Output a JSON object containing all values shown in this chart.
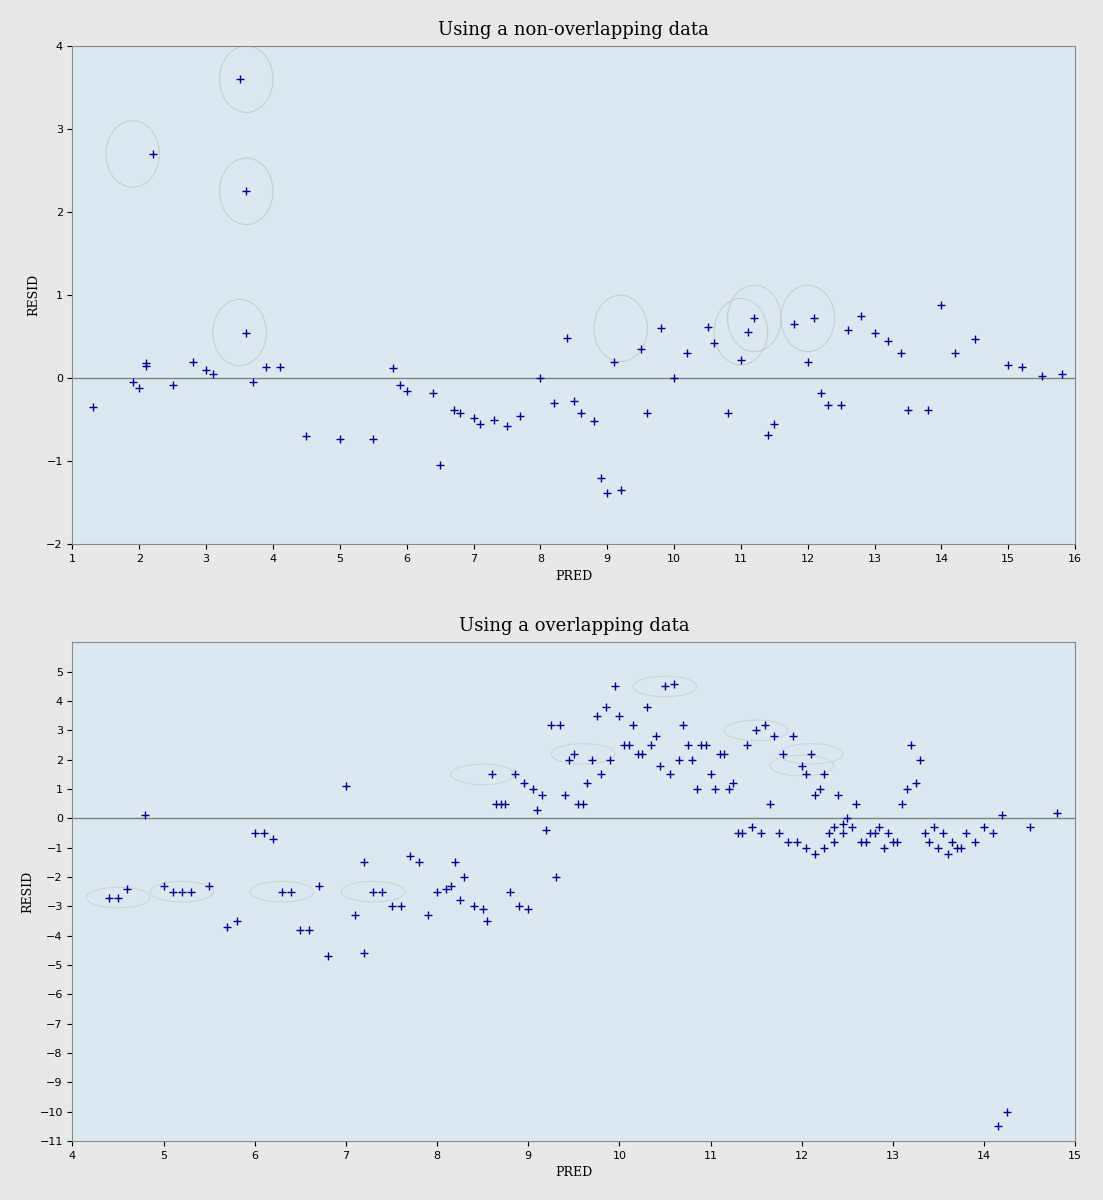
{
  "plot1": {
    "title": "Using a non-overlapping data",
    "xlabel": "PRED",
    "ylabel": "RESID",
    "xlim": [
      1,
      16
    ],
    "ylim": [
      -2,
      4
    ],
    "xticks": [
      1,
      2,
      3,
      4,
      5,
      6,
      7,
      8,
      9,
      10,
      11,
      12,
      13,
      14,
      15,
      16
    ],
    "yticks": [
      -2,
      -1,
      0,
      1,
      2,
      3,
      4
    ],
    "points_x": [
      1.3,
      1.9,
      2.0,
      2.1,
      2.1,
      2.2,
      2.5,
      2.8,
      3.0,
      3.1,
      3.5,
      3.6,
      3.6,
      3.7,
      3.9,
      4.1,
      4.5,
      5.0,
      5.5,
      5.8,
      5.9,
      6.0,
      6.4,
      6.5,
      6.7,
      6.8,
      7.0,
      7.1,
      7.3,
      7.5,
      7.7,
      8.0,
      8.2,
      8.4,
      8.5,
      8.6,
      8.8,
      8.9,
      9.0,
      9.1,
      9.2,
      9.5,
      9.6,
      9.8,
      10.0,
      10.2,
      10.5,
      10.6,
      10.8,
      11.0,
      11.1,
      11.2,
      11.4,
      11.5,
      11.8,
      12.0,
      12.1,
      12.2,
      12.3,
      12.5,
      12.6,
      12.8,
      13.0,
      13.2,
      13.4,
      13.5,
      13.8,
      14.0,
      14.2,
      14.5,
      15.0,
      15.2,
      15.5,
      15.8
    ],
    "points_y": [
      -0.35,
      -0.05,
      -0.12,
      0.18,
      0.15,
      2.7,
      -0.08,
      0.2,
      0.1,
      0.05,
      3.6,
      2.25,
      0.55,
      -0.05,
      0.13,
      0.13,
      -0.7,
      -0.73,
      -0.73,
      0.12,
      -0.08,
      -0.15,
      -0.18,
      -1.05,
      -0.38,
      -0.42,
      -0.48,
      -0.55,
      -0.5,
      -0.58,
      -0.45,
      0.0,
      -0.3,
      0.48,
      -0.28,
      -0.42,
      -0.52,
      -1.2,
      -1.38,
      0.2,
      -1.35,
      0.35,
      -0.42,
      0.6,
      0.0,
      0.3,
      0.62,
      0.42,
      -0.42,
      0.22,
      0.56,
      0.72,
      -0.68,
      -0.55,
      0.65,
      0.2,
      0.72,
      -0.18,
      -0.32,
      -0.32,
      0.58,
      0.75,
      0.55,
      0.45,
      0.3,
      -0.38,
      -0.38,
      0.88,
      0.3,
      0.47,
      0.16,
      0.13,
      0.03,
      0.05
    ]
  },
  "plot2": {
    "title": "Using a overlapping data",
    "xlabel": "PRED",
    "ylabel": "RESID",
    "xlim": [
      4,
      15
    ],
    "ylim": [
      -11,
      6
    ],
    "xticks": [
      4,
      5,
      6,
      7,
      8,
      9,
      10,
      11,
      12,
      13,
      14,
      15
    ],
    "yticks": [
      -11,
      -10,
      -9,
      -8,
      -7,
      -6,
      -5,
      -4,
      -3,
      -2,
      -1,
      0,
      1,
      2,
      3,
      4,
      5
    ],
    "points_x": [
      4.5,
      4.6,
      4.8,
      5.2,
      5.3,
      5.5,
      5.7,
      5.8,
      6.0,
      6.2,
      6.3,
      6.4,
      6.6,
      6.8,
      7.0,
      7.2,
      7.3,
      7.4,
      7.5,
      7.6,
      7.8,
      7.9,
      8.0,
      8.1,
      8.2,
      8.3,
      8.4,
      8.5,
      8.6,
      8.7,
      8.8,
      8.9,
      9.0,
      9.1,
      9.2,
      9.3,
      9.4,
      9.5,
      9.6,
      9.7,
      9.8,
      9.9,
      10.0,
      10.1,
      10.2,
      10.3,
      10.4,
      10.5,
      10.6,
      10.7,
      10.8,
      10.9,
      11.0,
      11.1,
      11.2,
      11.3,
      11.4,
      11.5,
      11.6,
      11.7,
      11.8,
      11.9,
      12.0,
      12.05,
      12.1,
      12.15,
      12.2,
      12.25,
      12.3,
      12.35,
      12.4,
      12.45,
      12.5,
      12.6,
      12.7,
      12.8,
      12.9,
      13.0,
      13.1,
      13.2,
      13.3,
      13.4,
      13.5,
      13.6,
      13.7,
      13.8,
      13.9,
      14.0,
      14.1,
      14.2,
      14.5,
      14.8,
      4.4,
      5.0,
      5.1,
      6.1,
      6.5,
      6.7,
      7.1,
      7.2,
      7.7,
      8.15,
      8.25,
      8.55,
      8.65,
      8.75,
      8.85,
      8.95,
      9.05,
      9.15,
      9.25,
      9.35,
      9.45,
      9.55,
      9.65,
      9.75,
      9.85,
      9.95,
      10.05,
      10.15,
      10.25,
      10.35,
      10.45,
      10.55,
      10.65,
      10.75,
      10.85,
      10.95,
      11.05,
      11.15,
      11.25,
      11.35,
      11.45,
      11.55,
      11.65,
      11.75,
      11.85,
      11.95,
      12.05,
      12.15,
      12.25,
      12.35,
      12.45,
      12.55,
      12.65,
      12.75,
      12.85,
      12.95,
      13.05,
      13.15,
      13.25,
      13.35,
      13.45,
      13.55,
      13.65,
      13.75,
      14.15,
      14.25
    ],
    "points_y": [
      -2.7,
      -2.4,
      0.1,
      -2.5,
      -2.5,
      -2.3,
      -3.7,
      -3.5,
      -0.5,
      -0.7,
      -2.5,
      -2.5,
      -3.8,
      -4.7,
      1.1,
      -4.6,
      -2.5,
      -2.5,
      -3.0,
      -3.0,
      -1.5,
      -3.3,
      -2.5,
      -2.4,
      -1.5,
      -2.0,
      -3.0,
      -3.1,
      1.5,
      0.5,
      -2.5,
      -3.0,
      -3.1,
      0.3,
      -0.4,
      -2.0,
      0.8,
      2.2,
      0.5,
      2.0,
      1.5,
      2.0,
      3.5,
      2.5,
      2.2,
      3.8,
      2.8,
      4.5,
      4.6,
      3.2,
      2.0,
      2.5,
      1.5,
      2.2,
      1.0,
      -0.5,
      2.5,
      3.0,
      3.2,
      2.8,
      2.2,
      2.8,
      1.8,
      1.5,
      2.2,
      0.8,
      1.0,
      1.5,
      -0.5,
      -0.3,
      0.8,
      -0.2,
      0.0,
      0.5,
      -0.8,
      -0.5,
      -1.0,
      -0.8,
      0.5,
      2.5,
      2.0,
      -0.8,
      -1.0,
      -1.2,
      -1.0,
      -0.5,
      -0.8,
      -0.3,
      -0.5,
      0.1,
      -0.3,
      0.2,
      -2.7,
      -2.3,
      -2.5,
      -0.5,
      -3.8,
      -2.3,
      -3.3,
      -1.5,
      -1.3,
      -2.3,
      -2.8,
      -3.5,
      0.5,
      0.5,
      1.5,
      1.2,
      1.0,
      0.8,
      3.2,
      3.2,
      2.0,
      0.5,
      1.2,
      3.5,
      3.8,
      4.5,
      2.5,
      3.2,
      2.2,
      2.5,
      1.8,
      1.5,
      2.0,
      2.5,
      1.0,
      2.5,
      1.0,
      2.2,
      1.2,
      -0.5,
      -0.3,
      -0.5,
      0.5,
      -0.5,
      -0.8,
      -0.8,
      -1.0,
      -1.2,
      -1.0,
      -0.8,
      -0.5,
      -0.3,
      -0.8,
      -0.5,
      -0.3,
      -0.5,
      -0.8,
      1.0,
      1.2,
      -0.5,
      -0.3,
      -0.5,
      -0.8,
      -1.0,
      -10.5,
      -10.0
    ]
  },
  "marker_color": "#00008B",
  "marker_style": "+",
  "marker_size": 6,
  "background_color": "#f0f0f0",
  "axes_background": "#f0f8ff",
  "zero_line_color": "gray",
  "font_family": "serif",
  "title_fontsize": 13,
  "label_fontsize": 9,
  "tick_fontsize": 8
}
